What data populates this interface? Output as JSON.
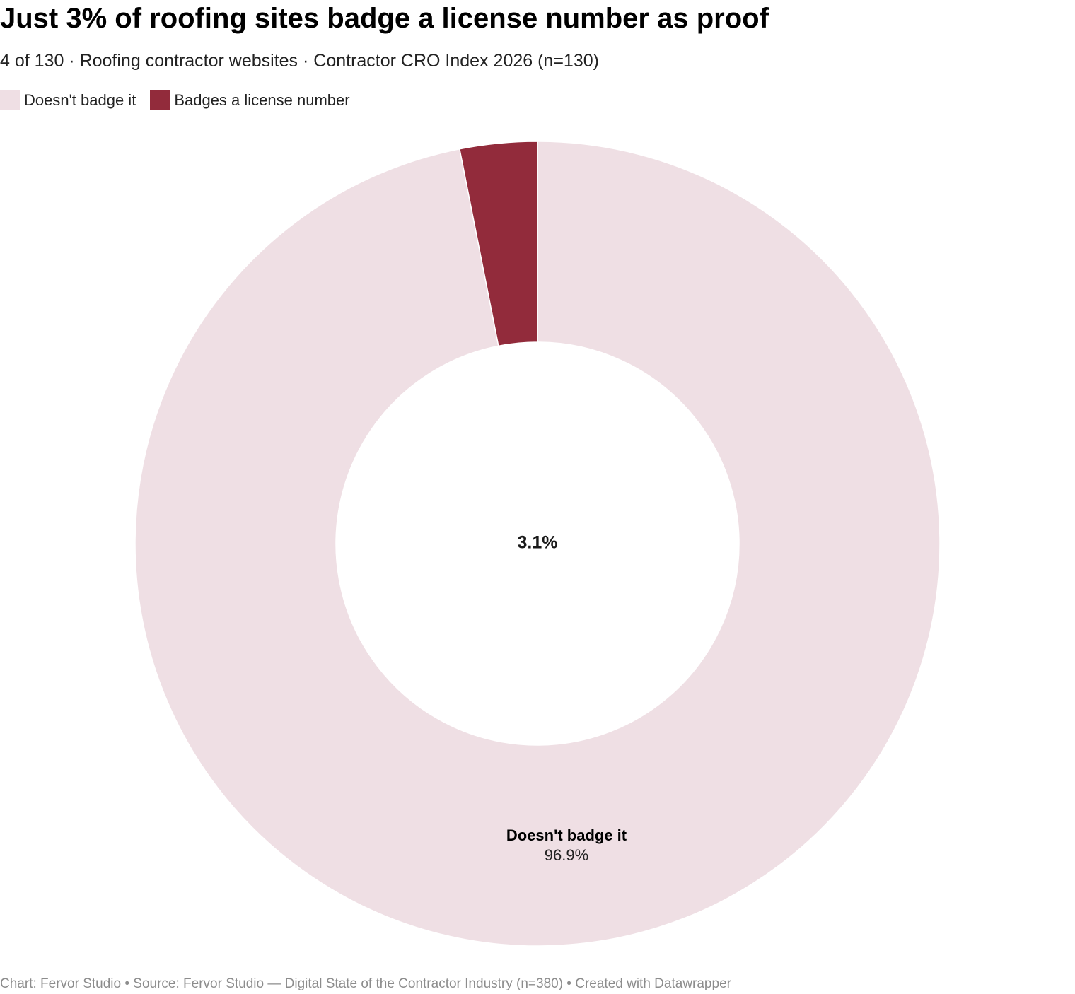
{
  "header": {
    "title": "Just 3% of roofing sites badge a license number as proof",
    "subtitle": "4 of 130 · Roofing contractor websites · Contractor CRO Index 2026 (n=130)"
  },
  "footer": {
    "text": "Chart: Fervor Studio • Source: Fervor Studio — Digital State of the Contractor Industry (n=380) • Created with Datawrapper"
  },
  "chart_data": {
    "type": "pie",
    "variant": "donut",
    "title": "Just 3% of roofing sites badge a license number as proof",
    "subtitle": "4 of 130 · Roofing contractor websites · Contractor CRO Index 2026 (n=130)",
    "legend_position": "top-left",
    "center_label": "3.1%",
    "slices": [
      {
        "label": "Doesn't badge it",
        "value": 96.9,
        "value_label": "96.9%",
        "color": "#efdfe4"
      },
      {
        "label": "Badges a license number",
        "value": 3.1,
        "value_label": "3.1%",
        "color": "#922b3b"
      }
    ],
    "direct_label": {
      "label": "Doesn't badge it",
      "value_label": "96.9%"
    }
  }
}
